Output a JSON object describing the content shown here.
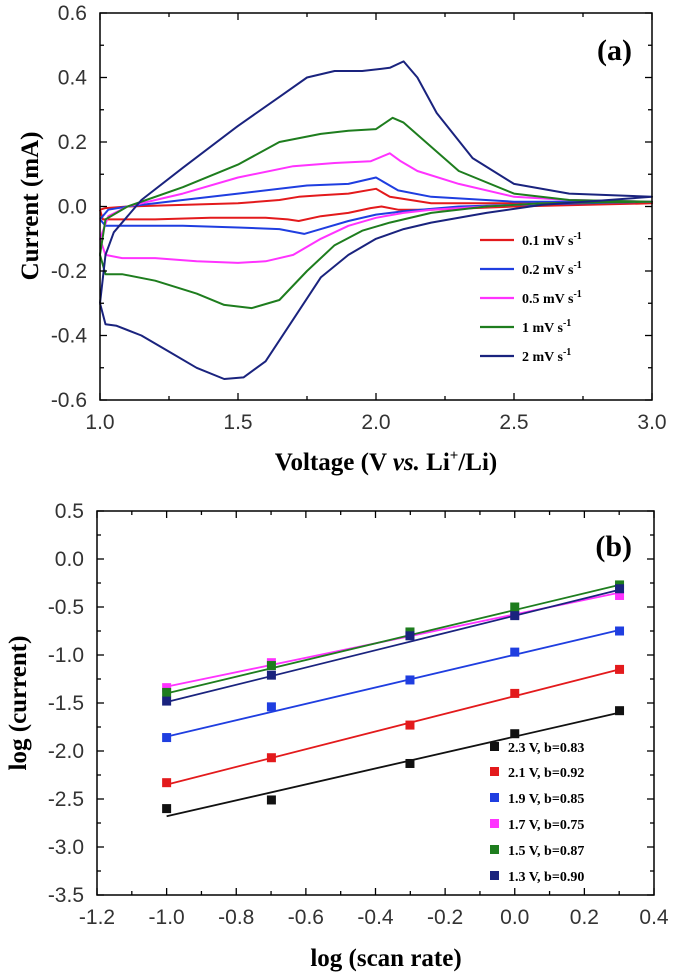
{
  "colors": {
    "red": "#e31a1c",
    "blue": "#1f3ee0",
    "magenta": "#ff33ff",
    "green": "#1e7d1e",
    "navy": "#1a237e",
    "black": "#111111"
  },
  "chart_data": [
    {
      "type": "line",
      "panel_label": "(a)",
      "title": "",
      "xlabel": {
        "main": "Voltage (V ",
        "italic": "vs.",
        "pre": " Li",
        "sup": "+",
        "post": "/Li)"
      },
      "ylabel": "Current (mA)",
      "xlim": [
        1.0,
        3.0
      ],
      "ylim": [
        -0.6,
        0.6
      ],
      "xticks": [
        1.0,
        1.5,
        2.0,
        2.5,
        3.0
      ],
      "xtick_labels": [
        "1.0",
        "1.5",
        "2.0",
        "2.5",
        "3.0"
      ],
      "yticks": [
        -0.6,
        -0.4,
        -0.2,
        0.0,
        0.2,
        0.4,
        0.6
      ],
      "ytick_labels": [
        "-0.6",
        "-0.4",
        "-0.2",
        "0.0",
        "0.2",
        "0.4",
        "0.6"
      ],
      "legend_position": "bottom-right",
      "series": [
        {
          "name": "0.1 mV s-1",
          "label_main": "0.1 mV s",
          "label_sup": "-1",
          "color": "red",
          "x": [
            1.0,
            1.01,
            1.05,
            1.2,
            1.4,
            1.6,
            1.68,
            1.72,
            1.8,
            1.9,
            1.98,
            2.02,
            2.08,
            2.2,
            2.5,
            3.0,
            2.5,
            2.2,
            2.05,
            2.0,
            1.9,
            1.8,
            1.72,
            1.65,
            1.5,
            1.3,
            1.1,
            1.02,
            1.0
          ],
          "y": [
            -0.01,
            -0.04,
            -0.04,
            -0.04,
            -0.035,
            -0.035,
            -0.04,
            -0.045,
            -0.03,
            -0.02,
            -0.005,
            0.0,
            -0.01,
            -0.01,
            0.0,
            0.01,
            0.01,
            0.01,
            0.03,
            0.055,
            0.04,
            0.035,
            0.03,
            0.02,
            0.01,
            0.005,
            0.0,
            -0.005,
            -0.01
          ]
        },
        {
          "name": "0.2 mV s-1",
          "label_main": "0.2 mV s",
          "label_sup": "-1",
          "color": "blue",
          "x": [
            1.0,
            1.02,
            1.08,
            1.3,
            1.5,
            1.65,
            1.74,
            1.8,
            1.9,
            2.0,
            2.1,
            2.3,
            2.5,
            3.0,
            2.5,
            2.2,
            2.08,
            2.0,
            1.9,
            1.75,
            1.5,
            1.3,
            1.1,
            1.03,
            1.0
          ],
          "y": [
            -0.04,
            -0.06,
            -0.06,
            -0.06,
            -0.065,
            -0.07,
            -0.085,
            -0.07,
            -0.045,
            -0.025,
            -0.015,
            0.0,
            0.005,
            0.015,
            0.015,
            0.03,
            0.05,
            0.09,
            0.07,
            0.065,
            0.04,
            0.02,
            0.0,
            -0.01,
            -0.04
          ]
        },
        {
          "name": "0.5 mV s-1",
          "label_main": "0.5 mV s",
          "label_sup": "-1",
          "color": "magenta",
          "x": [
            1.0,
            1.02,
            1.08,
            1.2,
            1.35,
            1.5,
            1.6,
            1.7,
            1.8,
            1.9,
            2.0,
            2.1,
            2.2,
            2.4,
            2.6,
            3.0,
            2.7,
            2.5,
            2.3,
            2.15,
            2.09,
            2.05,
            1.98,
            1.85,
            1.7,
            1.5,
            1.3,
            1.1,
            1.03,
            1.0
          ],
          "y": [
            -0.1,
            -0.15,
            -0.16,
            -0.16,
            -0.17,
            -0.175,
            -0.17,
            -0.15,
            -0.1,
            -0.06,
            -0.035,
            -0.02,
            -0.01,
            0.0,
            0.01,
            0.015,
            0.02,
            0.03,
            0.07,
            0.11,
            0.14,
            0.165,
            0.14,
            0.135,
            0.125,
            0.09,
            0.04,
            0.0,
            -0.03,
            -0.1
          ]
        },
        {
          "name": "1 mV s-1",
          "label_main": "1 mV s",
          "label_sup": "-1",
          "color": "green",
          "x": [
            1.0,
            1.02,
            1.08,
            1.2,
            1.35,
            1.45,
            1.55,
            1.65,
            1.75,
            1.85,
            1.95,
            2.05,
            2.2,
            2.4,
            2.6,
            3.0,
            2.7,
            2.5,
            2.3,
            2.18,
            2.1,
            2.06,
            2.0,
            1.9,
            1.8,
            1.65,
            1.5,
            1.3,
            1.1,
            1.02,
            1.0
          ],
          "y": [
            -0.15,
            -0.21,
            -0.21,
            -0.23,
            -0.27,
            -0.305,
            -0.315,
            -0.29,
            -0.2,
            -0.12,
            -0.075,
            -0.05,
            -0.02,
            0.0,
            0.01,
            0.015,
            0.02,
            0.04,
            0.11,
            0.2,
            0.26,
            0.275,
            0.24,
            0.235,
            0.225,
            0.2,
            0.13,
            0.06,
            0.0,
            -0.04,
            -0.15
          ]
        },
        {
          "name": "2 mV s-1",
          "label_main": "2 mV s",
          "label_sup": "-1",
          "color": "navy",
          "x": [
            1.0,
            1.02,
            1.06,
            1.15,
            1.25,
            1.35,
            1.45,
            1.52,
            1.6,
            1.7,
            1.8,
            1.9,
            2.0,
            2.1,
            2.2,
            2.4,
            2.6,
            3.0,
            2.7,
            2.5,
            2.35,
            2.22,
            2.15,
            2.1,
            2.05,
            1.95,
            1.85,
            1.75,
            1.65,
            1.5,
            1.3,
            1.15,
            1.05,
            1.02,
            1.0
          ],
          "y": [
            -0.3,
            -0.365,
            -0.37,
            -0.4,
            -0.45,
            -0.5,
            -0.535,
            -0.53,
            -0.48,
            -0.35,
            -0.22,
            -0.15,
            -0.1,
            -0.07,
            -0.05,
            -0.02,
            0.005,
            0.03,
            0.04,
            0.07,
            0.15,
            0.29,
            0.4,
            0.45,
            0.43,
            0.42,
            0.42,
            0.4,
            0.34,
            0.25,
            0.12,
            0.02,
            -0.08,
            -0.15,
            -0.3
          ]
        }
      ]
    },
    {
      "type": "scatter",
      "panel_label": "(b)",
      "title": "",
      "xlabel": "log (scan rate)",
      "ylabel": "log (current)",
      "xlim": [
        -1.2,
        0.4
      ],
      "ylim": [
        -3.5,
        0.5
      ],
      "xticks": [
        -1.2,
        -1.0,
        -0.8,
        -0.6,
        -0.4,
        -0.2,
        0.0,
        0.2,
        0.4
      ],
      "xtick_labels": [
        "-1.2",
        "-1.0",
        "-0.8",
        "-0.6",
        "-0.4",
        "-0.2",
        "0.0",
        "0.2",
        "0.4"
      ],
      "yticks": [
        -3.5,
        -3.0,
        -2.5,
        -2.0,
        -1.5,
        -1.0,
        -0.5,
        0.0,
        0.5
      ],
      "ytick_labels": [
        "-3.5",
        "-3.0",
        "-2.5",
        "-2.0",
        "-1.5",
        "-1.0",
        "-0.5",
        "0.0",
        "0.5"
      ],
      "legend_position": "bottom-right",
      "x": [
        -1.0,
        -0.699,
        -0.301,
        0.0,
        0.301
      ],
      "series": [
        {
          "name": "2.3 V, b=0.83",
          "color": "black",
          "values": [
            -2.6,
            -2.51,
            -2.13,
            -1.82,
            -1.58
          ],
          "fit": [
            [
              -1.0,
              -2.68
            ],
            [
              0.301,
              -1.6
            ]
          ]
        },
        {
          "name": "2.1 V, b=0.92",
          "color": "red",
          "values": [
            -2.33,
            -2.07,
            -1.73,
            -1.4,
            -1.15
          ],
          "fit": [
            [
              -1.0,
              -2.35
            ],
            [
              0.301,
              -1.15
            ]
          ]
        },
        {
          "name": "1.9 V, b=0.85",
          "color": "blue",
          "values": [
            -1.86,
            -1.54,
            -1.26,
            -0.97,
            -0.75
          ],
          "fit": [
            [
              -1.0,
              -1.85
            ],
            [
              0.301,
              -0.74
            ]
          ]
        },
        {
          "name": "1.7 V, b=0.75",
          "color": "magenta",
          "values": [
            -1.34,
            -1.08,
            -0.77,
            -0.58,
            -0.38
          ],
          "fit": [
            [
              -1.0,
              -1.33
            ],
            [
              0.301,
              -0.35
            ]
          ]
        },
        {
          "name": "1.5 V, b=0.87",
          "color": "green",
          "values": [
            -1.39,
            -1.11,
            -0.76,
            -0.5,
            -0.27
          ],
          "fit": [
            [
              -1.0,
              -1.4
            ],
            [
              0.301,
              -0.27
            ]
          ]
        },
        {
          "name": "1.3 V, b=0.90",
          "color": "navy",
          "values": [
            -1.48,
            -1.21,
            -0.8,
            -0.59,
            -0.31
          ],
          "fit": [
            [
              -1.0,
              -1.49
            ],
            [
              0.301,
              -0.32
            ]
          ]
        }
      ]
    }
  ]
}
